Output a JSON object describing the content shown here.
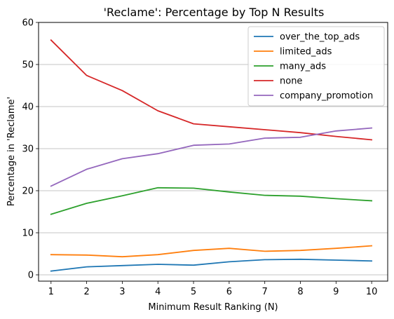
{
  "chart_data": {
    "type": "line",
    "title": "'Reclame': Percentage by Top N Results",
    "xlabel": "Minimum Result Ranking (N)",
    "ylabel": "Percentage in 'Reclame'",
    "x": [
      1,
      2,
      3,
      4,
      5,
      6,
      7,
      8,
      9,
      10
    ],
    "xlim": [
      0.65,
      10.45
    ],
    "ylim": [
      -1.5,
      60
    ],
    "yticks": [
      0,
      10,
      20,
      30,
      40,
      50,
      60
    ],
    "grid": "horizontal",
    "legend_position": "top-right",
    "series": [
      {
        "name": "over_the_top_ads",
        "color": "#1f77b4",
        "values": [
          0.9,
          1.9,
          2.2,
          2.5,
          2.3,
          3.1,
          3.6,
          3.7,
          3.5,
          3.3
        ]
      },
      {
        "name": "limited_ads",
        "color": "#ff7f0e",
        "values": [
          4.8,
          4.7,
          4.3,
          4.8,
          5.8,
          6.3,
          5.6,
          5.8,
          6.3,
          6.9
        ]
      },
      {
        "name": "many_ads",
        "color": "#2ca02c",
        "values": [
          14.4,
          17.0,
          18.8,
          20.7,
          20.6,
          19.7,
          18.9,
          18.7,
          18.1,
          17.6
        ]
      },
      {
        "name": "none",
        "color": "#d62728",
        "values": [
          55.8,
          47.4,
          43.8,
          39.0,
          35.9,
          35.2,
          34.5,
          33.8,
          32.9,
          32.1
        ]
      },
      {
        "name": "company_promotion",
        "color": "#9467bd",
        "values": [
          21.1,
          25.1,
          27.6,
          28.8,
          30.8,
          31.1,
          32.5,
          32.7,
          34.2,
          34.9
        ]
      }
    ]
  }
}
